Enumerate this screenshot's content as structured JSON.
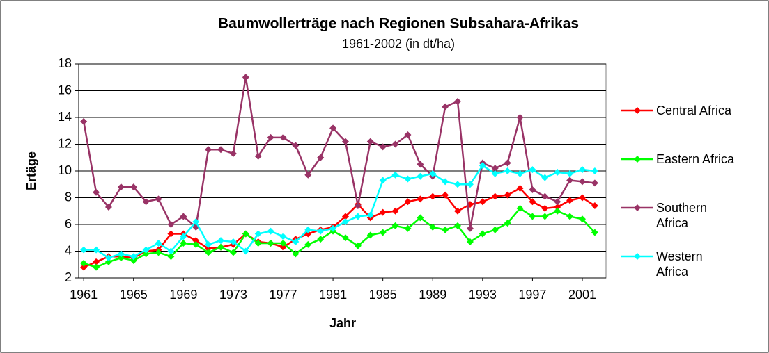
{
  "chart_data": {
    "type": "line",
    "title": "Baumwollerträge nach Regionen Subsahara-Afrikas",
    "subtitle": "1961-2002 (in dt/ha)",
    "x_label": "Jahr",
    "y_label": "Ertäge",
    "x": [
      1961,
      1962,
      1963,
      1964,
      1965,
      1966,
      1967,
      1968,
      1969,
      1970,
      1971,
      1972,
      1973,
      1974,
      1975,
      1976,
      1977,
      1978,
      1979,
      1980,
      1981,
      1982,
      1983,
      1984,
      1985,
      1986,
      1987,
      1988,
      1989,
      1990,
      1991,
      1992,
      1993,
      1994,
      1995,
      1996,
      1997,
      1998,
      1999,
      2000,
      2001,
      2002
    ],
    "xlim": [
      1960.6,
      2002.9
    ],
    "xticks": [
      1961,
      1965,
      1969,
      1973,
      1977,
      1981,
      1985,
      1989,
      1993,
      1997,
      2001
    ],
    "ylim": [
      2,
      18
    ],
    "yticks": [
      2,
      4,
      6,
      8,
      10,
      12,
      14,
      16,
      18
    ],
    "grid": true,
    "legend": "right",
    "series": [
      {
        "name": "Central Africa",
        "color": "#ff0000",
        "values": [
          2.8,
          3.2,
          3.6,
          3.6,
          3.5,
          4.0,
          4.1,
          5.3,
          5.3,
          4.8,
          4.2,
          4.3,
          4.5,
          5.3,
          4.7,
          4.6,
          4.3,
          4.9,
          5.3,
          5.6,
          5.8,
          6.6,
          7.5,
          6.5,
          6.9,
          7.0,
          7.7,
          7.9,
          8.1,
          8.2,
          7.0,
          7.5,
          7.7,
          8.1,
          8.2,
          8.7,
          7.7,
          7.2,
          7.3,
          7.8,
          8.0,
          7.4
        ]
      },
      {
        "name": "Eastern Africa",
        "color": "#00ff00",
        "values": [
          3.1,
          2.8,
          3.2,
          3.5,
          3.3,
          3.8,
          3.9,
          3.6,
          4.6,
          4.5,
          3.9,
          4.3,
          3.9,
          5.3,
          4.6,
          4.6,
          4.6,
          3.8,
          4.5,
          4.9,
          5.5,
          5.0,
          4.4,
          5.2,
          5.4,
          5.9,
          5.7,
          6.5,
          5.8,
          5.6,
          5.9,
          4.7,
          5.3,
          5.6,
          6.1,
          7.2,
          6.6,
          6.6,
          7.0,
          6.6,
          6.4,
          5.4
        ]
      },
      {
        "name": "Southern Africa",
        "color": "#993366",
        "values": [
          13.7,
          8.4,
          7.3,
          8.8,
          8.8,
          7.7,
          7.9,
          6.0,
          6.6,
          5.8,
          11.6,
          11.6,
          11.3,
          17.0,
          11.1,
          12.5,
          12.5,
          11.9,
          9.7,
          11.0,
          13.2,
          12.2,
          7.4,
          12.2,
          11.8,
          12.0,
          12.7,
          10.5,
          9.6,
          14.8,
          15.2,
          5.7,
          10.6,
          10.2,
          10.6,
          14.0,
          8.6,
          8.1,
          7.7,
          9.3,
          9.2,
          9.1
        ]
      },
      {
        "name": "Western Africa",
        "color": "#00ffff",
        "values": [
          4.1,
          4.1,
          3.5,
          3.8,
          3.6,
          4.1,
          4.6,
          4.0,
          5.1,
          6.2,
          4.5,
          4.8,
          4.7,
          4.0,
          5.3,
          5.5,
          5.1,
          4.7,
          5.6,
          5.5,
          5.7,
          6.2,
          6.6,
          6.7,
          9.3,
          9.7,
          9.4,
          9.6,
          9.8,
          9.2,
          9.0,
          9.0,
          10.4,
          9.8,
          10.0,
          9.8,
          10.1,
          9.5,
          9.9,
          9.8,
          10.1,
          10.0
        ]
      }
    ]
  }
}
